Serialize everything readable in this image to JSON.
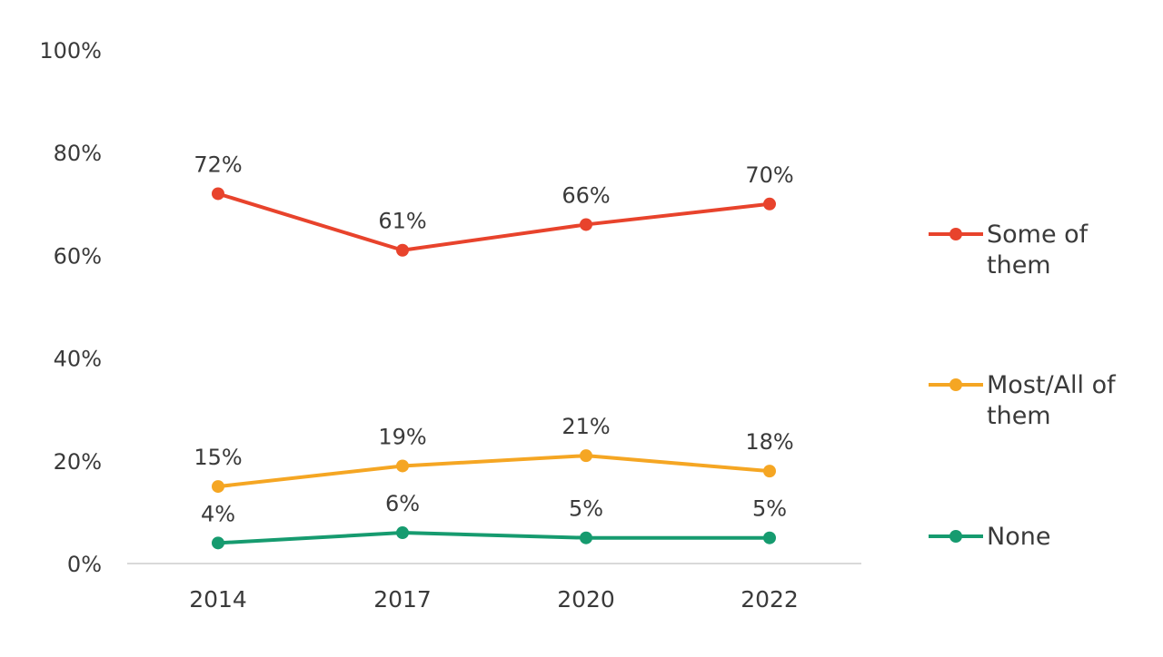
{
  "chart_data": {
    "type": "line",
    "title": "",
    "xlabel": "",
    "ylabel": "",
    "categories": [
      "2014",
      "2017",
      "2020",
      "2022"
    ],
    "ylim": [
      0,
      100
    ],
    "yticks": [
      0,
      20,
      40,
      60,
      80,
      100
    ],
    "ytick_labels": [
      "0%",
      "20%",
      "40%",
      "60%",
      "80%",
      "100%"
    ],
    "grid": false,
    "legend_position": "right",
    "series": [
      {
        "name": "Some of them",
        "legend_lines": [
          "Some of",
          "them"
        ],
        "color": "#e8432c",
        "values": [
          72,
          61,
          66,
          70
        ],
        "labels": [
          "72%",
          "61%",
          "66%",
          "70%"
        ]
      },
      {
        "name": "Most/All of them",
        "legend_lines": [
          "Most/All of",
          "them"
        ],
        "color": "#f5a623",
        "values": [
          15,
          19,
          21,
          18
        ],
        "labels": [
          "15%",
          "19%",
          "21%",
          "18%"
        ]
      },
      {
        "name": "None",
        "legend_lines": [
          "None"
        ],
        "color": "#169b6f",
        "values": [
          4,
          6,
          5,
          5
        ],
        "labels": [
          "4%",
          "6%",
          "5%",
          "5%"
        ]
      }
    ]
  }
}
